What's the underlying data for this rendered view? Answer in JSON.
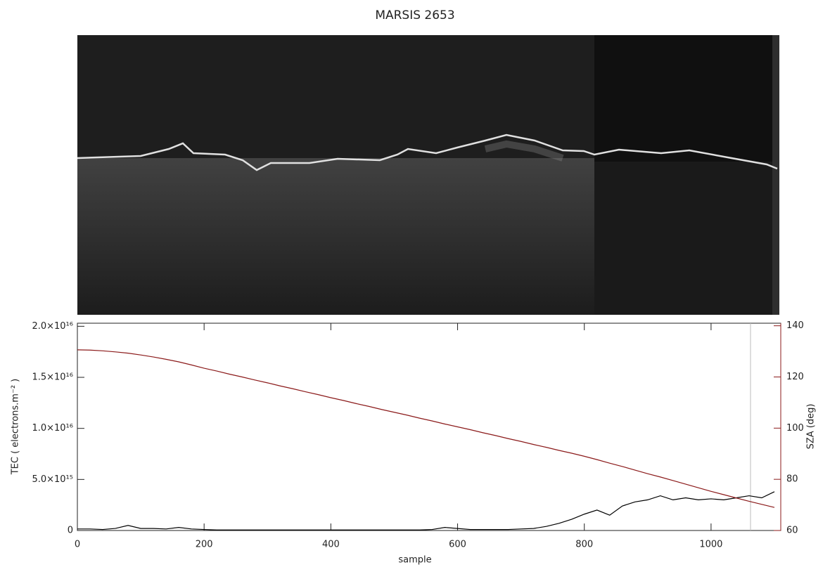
{
  "chart_data": {
    "type": "line",
    "title": "MARSIS 2653",
    "x_label": "sample",
    "y_label": "TEC ( electrons.m⁻² )",
    "y2_label": "SZA (deg)",
    "x": [
      0,
      20,
      40,
      60,
      80,
      100,
      120,
      140,
      160,
      180,
      200,
      220,
      240,
      260,
      280,
      300,
      320,
      340,
      360,
      380,
      400,
      420,
      440,
      460,
      480,
      500,
      520,
      540,
      560,
      580,
      600,
      620,
      640,
      660,
      680,
      700,
      720,
      740,
      760,
      780,
      800,
      820,
      840,
      860,
      880,
      900,
      920,
      940,
      960,
      980,
      1000,
      1020,
      1040,
      1060,
      1080,
      1100
    ],
    "xlim": [
      0,
      1110
    ],
    "xticks": [
      0,
      200,
      400,
      600,
      800,
      1000
    ],
    "ylim": [
      0,
      2.03e+16
    ],
    "yticks": [
      0,
      {
        "value": 5000000000000000.0,
        "label": "5.0×10¹⁵"
      },
      {
        "value": 1e+16,
        "label": "1.0×10¹⁶"
      },
      {
        "value": 1.5e+16,
        "label": "1.5×10¹⁶"
      },
      {
        "value": 2e+16,
        "label": "2.0×10¹⁶"
      }
    ],
    "y2lim": [
      60,
      141
    ],
    "y2ticks": [
      60,
      80,
      100,
      120,
      140
    ],
    "y2_color": "#8b1a1a",
    "series": [
      {
        "name": "TEC",
        "color": "#000000",
        "values": [
          150000000000000.0,
          150000000000000.0,
          100000000000000.0,
          200000000000000.0,
          500000000000000.0,
          200000000000000.0,
          200000000000000.0,
          150000000000000.0,
          300000000000000.0,
          150000000000000.0,
          100000000000000.0,
          50000000000000.0,
          50000000000000.0,
          50000000000000.0,
          50000000000000.0,
          50000000000000.0,
          50000000000000.0,
          50000000000000.0,
          50000000000000.0,
          50000000000000.0,
          50000000000000.0,
          50000000000000.0,
          50000000000000.0,
          50000000000000.0,
          50000000000000.0,
          50000000000000.0,
          50000000000000.0,
          50000000000000.0,
          100000000000000.0,
          300000000000000.0,
          200000000000000.0,
          100000000000000.0,
          100000000000000.0,
          100000000000000.0,
          100000000000000.0,
          150000000000000.0,
          200000000000000.0,
          400000000000000.0,
          700000000000000.0,
          1100000000000000.0,
          1600000000000000.0,
          2000000000000000.0,
          1500000000000000.0,
          2400000000000000.0,
          2800000000000000.0,
          3000000000000000.0,
          3400000000000000.0,
          3000000000000000.0,
          3200000000000000.0,
          3000000000000000.0,
          3100000000000000.0,
          3000000000000000.0,
          3200000000000000.0,
          3400000000000000.0,
          3200000000000000.0,
          3800000000000000.0
        ]
      },
      {
        "name": "SZA",
        "color": "#8b1a1a",
        "axis": "y2",
        "values": [
          130.6,
          130.5,
          130.2,
          129.8,
          129.3,
          128.6,
          127.8,
          126.9,
          125.9,
          124.7,
          123.4,
          122.3,
          121.1,
          120,
          118.8,
          117.7,
          116.5,
          115.4,
          114.2,
          113.1,
          111.9,
          110.8,
          109.6,
          108.5,
          107.3,
          106.2,
          105.1,
          103.9,
          102.8,
          101.6,
          100.5,
          99.4,
          98.2,
          97.1,
          95.9,
          94.8,
          93.6,
          92.5,
          91.3,
          90.2,
          89,
          87.7,
          86.3,
          85,
          83.6,
          82.2,
          80.9,
          79.5,
          78.1,
          76.7,
          75.3,
          74,
          72.7,
          71.4,
          70.2,
          69
        ]
      }
    ]
  }
}
